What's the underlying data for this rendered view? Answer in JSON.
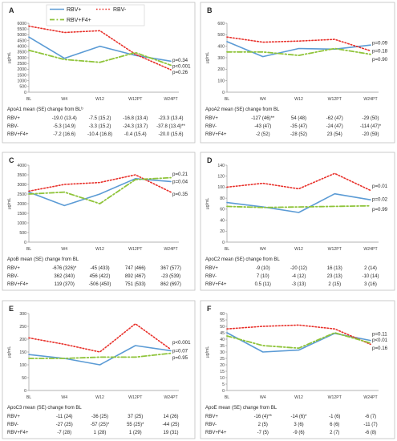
{
  "legend": {
    "items": [
      "RBV+",
      "RBV-",
      "RBV+F4+"
    ]
  },
  "colors": {
    "RBV+": "#5b9bd5",
    "RBV-": "#e8302a",
    "RBV+F4+": "#8fc43a"
  },
  "chart_data": [
    {
      "id": "A",
      "type": "line",
      "panel_label": "A",
      "ylabel": "µg/mL",
      "categories": [
        "BL",
        "W4",
        "W12",
        "W12PT",
        "W24PT"
      ],
      "ylim": [
        0,
        6000
      ],
      "yticks": [
        0,
        500,
        1000,
        1500,
        2000,
        2500,
        3000,
        3500,
        4000,
        4500,
        5000,
        5500,
        6000
      ],
      "series": [
        {
          "name": "RBV+",
          "values": [
            4800,
            2950,
            4000,
            3200,
            2700
          ]
        },
        {
          "name": "RBV-",
          "values": [
            5750,
            5200,
            5350,
            3300,
            1950
          ]
        },
        {
          "name": "RBV+F4+",
          "values": [
            3650,
            2850,
            2600,
            3450,
            2350
          ]
        }
      ],
      "annotations": [
        {
          "text": "p=0.34",
          "x": "W24PT",
          "y": 2780
        },
        {
          "text": "p<0.001",
          "x": "W24PT",
          "y": 2280
        },
        {
          "text": "p=0.26",
          "x": "W24PT",
          "y": 1750
        }
      ],
      "table": {
        "title": "ApoA1 mean (SE) change from BLᵇ",
        "rows": [
          {
            "label": "RBV+",
            "values": [
              "-19.0 (13.4)",
              "-7.5 (15.2)",
              "-16.8 (13.4)",
              "-23.3 (13.4)"
            ]
          },
          {
            "label": "RBV-",
            "values": [
              "-5.3 (14.9)",
              "-3.3 (15.2)",
              "-24.3 (13.7)",
              "-37.8 (13.4)**"
            ]
          },
          {
            "label": "RBV+F4+",
            "values": [
              "-7.2 (16.6)",
              "-10.4 (16.8)",
              "-0.4 (15.4)",
              "-20.0 (15.6)"
            ]
          }
        ]
      }
    },
    {
      "id": "B",
      "type": "line",
      "panel_label": "B",
      "ylabel": "µg/mL",
      "categories": [
        "BL",
        "W4",
        "W12",
        "W12PT",
        "W24PT"
      ],
      "ylim": [
        0,
        600
      ],
      "yticks": [
        0,
        100,
        200,
        300,
        400,
        500,
        600
      ],
      "series": [
        {
          "name": "RBV+",
          "values": [
            440,
            310,
            380,
            375,
            410
          ]
        },
        {
          "name": "RBV-",
          "values": [
            480,
            435,
            445,
            460,
            360
          ]
        },
        {
          "name": "RBV+F4+",
          "values": [
            350,
            350,
            320,
            380,
            330
          ]
        }
      ],
      "annotations": [
        {
          "text": "p=0.09",
          "x": "W24PT",
          "y": 430
        },
        {
          "text": "p=0.18",
          "x": "W24PT",
          "y": 360
        },
        {
          "text": "p=0.90",
          "x": "W24PT",
          "y": 285
        }
      ],
      "table": {
        "title": "ApoA2 mean (SE) change from BL",
        "rows": [
          {
            "label": "RBV+",
            "values": [
              "-127 (46)**",
              "54 (48)",
              "-62 (47)",
              "-29 (50)"
            ]
          },
          {
            "label": "RBV-",
            "values": [
              "-43 (47)",
              "-35 (47)",
              "-24 (47)",
              "-114 (47)*"
            ]
          },
          {
            "label": "RBV+F4+",
            "values": [
              "-2 (52)",
              "-28 (52)",
              "23 (54)",
              "-20 (59)"
            ]
          }
        ]
      }
    },
    {
      "id": "C",
      "type": "line",
      "panel_label": "C",
      "ylabel": "µg/mL",
      "categories": [
        "BL",
        "W4",
        "W12",
        "W12PT",
        "W24PT"
      ],
      "ylim": [
        0,
        4000
      ],
      "yticks": [
        0,
        500,
        1000,
        1500,
        2000,
        2500,
        3000,
        3500,
        4000
      ],
      "series": [
        {
          "name": "RBV+",
          "values": [
            2600,
            1900,
            2500,
            3300,
            3150
          ]
        },
        {
          "name": "RBV-",
          "values": [
            2650,
            3000,
            3100,
            3500,
            2600
          ]
        },
        {
          "name": "RBV+F4+",
          "values": [
            2500,
            2600,
            2000,
            3250,
            3350
          ]
        }
      ],
      "annotations": [
        {
          "text": "p=0.21",
          "x": "W24PT",
          "y": 3550
        },
        {
          "text": "p=0.04",
          "x": "W24PT",
          "y": 3150
        },
        {
          "text": "p=0.35",
          "x": "W24PT",
          "y": 2500
        }
      ],
      "table": {
        "title": "ApoB mean (SE) change from BL",
        "rows": [
          {
            "label": "RBV+",
            "values": [
              "-676 (326)*",
              "-45 (433)",
              "747 (466)",
              "367 (577)"
            ]
          },
          {
            "label": "RBV-",
            "values": [
              "362 (340)",
              "456 (422)",
              "892 (467)",
              "-23 (539)"
            ]
          },
          {
            "label": "RBV+F4+",
            "values": [
              "119 (370)",
              "-506 (450)",
              "751 (533)",
              "862 (697)"
            ]
          }
        ]
      }
    },
    {
      "id": "D",
      "type": "line",
      "panel_label": "D",
      "ylabel": "µg/mL",
      "categories": [
        "BL",
        "W4",
        "W12",
        "W12PT",
        "W24PT"
      ],
      "ylim": [
        0,
        140
      ],
      "yticks": [
        0,
        20,
        40,
        60,
        80,
        100,
        120,
        140
      ],
      "series": [
        {
          "name": "RBV+",
          "values": [
            72,
            64,
            54,
            88,
            77
          ]
        },
        {
          "name": "RBV-",
          "values": [
            100,
            107,
            97,
            125,
            94
          ]
        },
        {
          "name": "RBV+F4+",
          "values": [
            65,
            63,
            64,
            65,
            66
          ]
        }
      ],
      "annotations": [
        {
          "text": "p=0.01",
          "x": "W24PT",
          "y": 102
        },
        {
          "text": "p=0.02",
          "x": "W24PT",
          "y": 78
        },
        {
          "text": "p=0.99",
          "x": "W24PT",
          "y": 60
        }
      ],
      "table": {
        "title": "ApoC2 mean (SE) change from BL",
        "rows": [
          {
            "label": "RBV+",
            "values": [
              "-9 (10)",
              "-20 (12)",
              "16 (13)",
              "2 (14)"
            ]
          },
          {
            "label": "RBV-",
            "values": [
              "7 (10)",
              "-4 (12)",
              "23 (13)",
              "-10 (14)"
            ]
          },
          {
            "label": "RBV+F4+",
            "values": [
              "0.5 (11)",
              "-3 (13)",
              "2 (15)",
              "3 (16)"
            ]
          }
        ]
      }
    },
    {
      "id": "E",
      "type": "line",
      "panel_label": "E",
      "ylabel": "µg/mL",
      "categories": [
        "BL",
        "W4",
        "W12",
        "W12PT",
        "W24PT"
      ],
      "ylim": [
        0,
        300
      ],
      "yticks": [
        0,
        50,
        100,
        150,
        200,
        250,
        300
      ],
      "series": [
        {
          "name": "RBV+",
          "values": [
            140,
            125,
            100,
            175,
            155
          ]
        },
        {
          "name": "RBV-",
          "values": [
            205,
            180,
            150,
            260,
            160
          ]
        },
        {
          "name": "RBV+F4+",
          "values": [
            125,
            125,
            130,
            130,
            145
          ]
        }
      ],
      "annotations": [
        {
          "text": "p<0.001",
          "x": "W24PT",
          "y": 188
        },
        {
          "text": "p=0.07",
          "x": "W24PT",
          "y": 155
        },
        {
          "text": "p=0.95",
          "x": "W24PT",
          "y": 128
        }
      ],
      "table": {
        "title": "ApoC3 mean (SE) change from BL",
        "rows": [
          {
            "label": "RBV+",
            "values": [
              "-11 (24)",
              "-36 (25)",
              "37 (25)",
              "14 (26)"
            ]
          },
          {
            "label": "RBV-",
            "values": [
              "-27 (25)",
              "-57 (25)*",
              "55 (25)*",
              "-44 (25)"
            ]
          },
          {
            "label": "RBV+F4+",
            "values": [
              "-7 (28)",
              "1 (28)",
              "1 (29)",
              "19 (31)"
            ]
          }
        ]
      }
    },
    {
      "id": "F",
      "type": "line",
      "panel_label": "F",
      "ylabel": "µg/mL",
      "categories": [
        "BL",
        "W4",
        "W12",
        "W12PT",
        "W24PT"
      ],
      "ylim": [
        0,
        60
      ],
      "yticks": [
        0,
        5,
        10,
        15,
        20,
        25,
        30,
        35,
        40,
        45,
        50,
        55,
        60
      ],
      "series": [
        {
          "name": "RBV+",
          "values": [
            45,
            30,
            31.5,
            44.5,
            39
          ]
        },
        {
          "name": "RBV-",
          "values": [
            48,
            50,
            51,
            48,
            36
          ]
        },
        {
          "name": "RBV+F4+",
          "values": [
            42.5,
            35,
            33,
            45,
            37
          ]
        }
      ],
      "annotations": [
        {
          "text": "p=0.11",
          "x": "W24PT",
          "y": 44
        },
        {
          "text": "p<0.01",
          "x": "W24PT",
          "y": 39.5
        },
        {
          "text": "p=0.16",
          "x": "W24PT",
          "y": 33
        }
      ],
      "table": {
        "title": "ApoE mean (SE) change from BL",
        "rows": [
          {
            "label": "RBV+",
            "values": [
              "-16 (4)**",
              "-14 (6)*",
              "-1 (6)",
              "-6 (7)"
            ]
          },
          {
            "label": "RBV-",
            "values": [
              "2 (5)",
              "3 (6)",
              "6 (6)",
              "-11 (7)"
            ]
          },
          {
            "label": "RBV+F4+",
            "values": [
              "-7 (5)",
              "-9 (6)",
              "2 (7)",
              "-6 (8)"
            ]
          }
        ]
      }
    }
  ]
}
